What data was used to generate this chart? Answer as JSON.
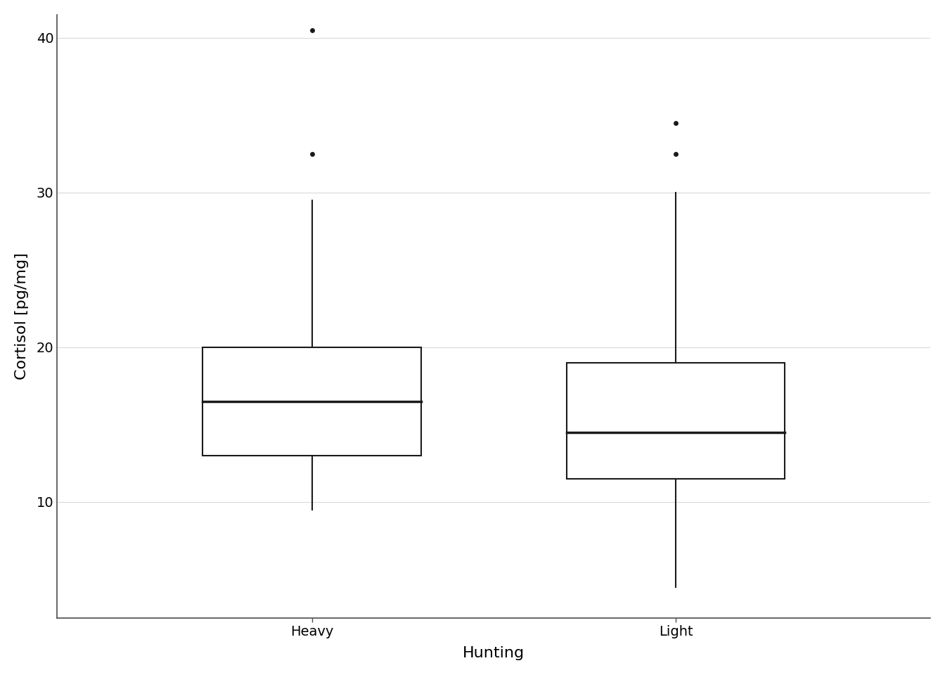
{
  "categories": [
    "Heavy",
    "Light"
  ],
  "xlabel": "Hunting",
  "ylabel": "Cortisol [pg/mg]",
  "ylim": [
    2.5,
    41.5
  ],
  "yticks": [
    10,
    20,
    30,
    40
  ],
  "background_color": "#ffffff",
  "grid_color": "#d9d9d9",
  "box_color": "#1a1a1a",
  "boxes": [
    {
      "label": "Heavy",
      "q1": 13.0,
      "median": 16.5,
      "q3": 20.0,
      "whisker_low": 9.5,
      "whisker_high": 29.5,
      "outliers": [
        32.5,
        40.5
      ]
    },
    {
      "label": "Light",
      "q1": 11.5,
      "median": 14.5,
      "q3": 19.0,
      "whisker_low": 4.5,
      "whisker_high": 30.0,
      "outliers": [
        32.5,
        34.5
      ]
    }
  ],
  "positions": [
    1,
    2
  ],
  "xlim": [
    0.3,
    2.7
  ],
  "box_width": 0.6,
  "linewidth": 1.5,
  "median_linewidth": 2.5,
  "outlier_size": 5,
  "title_fontsize": 14,
  "axis_label_fontsize": 16,
  "tick_fontsize": 14
}
